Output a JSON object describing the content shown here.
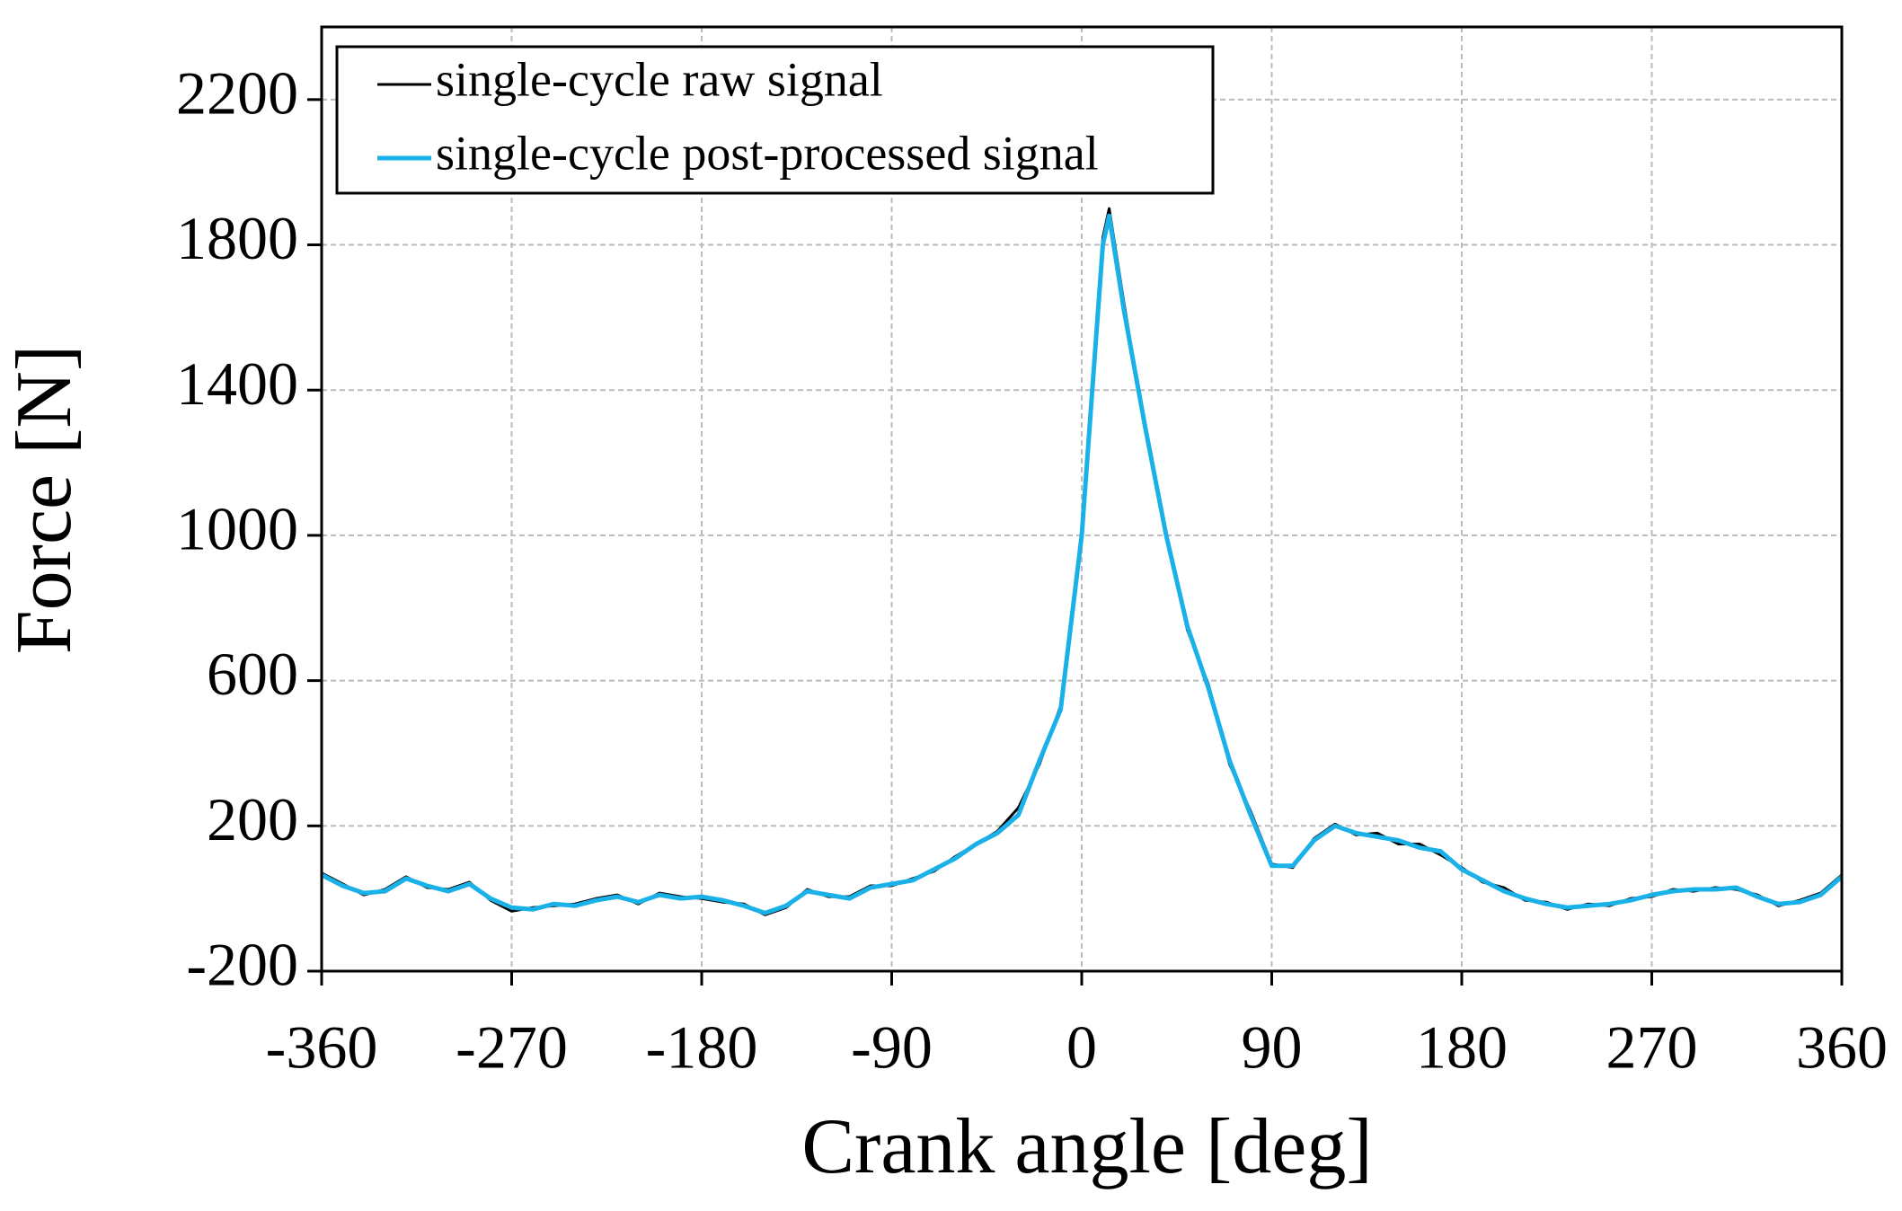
{
  "chart_data": {
    "type": "line",
    "xlabel": "Crank angle [deg]",
    "ylabel": "Force [N]",
    "x": [
      -360,
      -350,
      -340,
      -330,
      -320,
      -310,
      -300,
      -290,
      -280,
      -270,
      -260,
      -250,
      -240,
      -230,
      -220,
      -210,
      -200,
      -190,
      -180,
      -170,
      -160,
      -150,
      -140,
      -130,
      -120,
      -110,
      -100,
      -90,
      -80,
      -70,
      -60,
      -50,
      -40,
      -30,
      -20,
      -10,
      0,
      10,
      13,
      20,
      30,
      40,
      50,
      60,
      70,
      80,
      90,
      100,
      110,
      120,
      130,
      140,
      150,
      160,
      170,
      180,
      190,
      200,
      210,
      220,
      230,
      240,
      250,
      260,
      270,
      280,
      290,
      300,
      310,
      320,
      330,
      340,
      350,
      360
    ],
    "series": [
      {
        "name": "single-cycle raw signal",
        "color": "#000000",
        "values": [
          70,
          40,
          10,
          25,
          60,
          30,
          25,
          45,
          -5,
          -35,
          -25,
          -20,
          -15,
          0,
          10,
          -15,
          15,
          5,
          0,
          -10,
          -15,
          -45,
          -25,
          25,
          5,
          5,
          35,
          35,
          55,
          75,
          115,
          150,
          185,
          250,
          370,
          530,
          1010,
          1820,
          1900,
          1640,
          1290,
          1010,
          740,
          590,
          370,
          240,
          95,
          85,
          165,
          205,
          175,
          180,
          150,
          150,
          120,
          85,
          45,
          30,
          -5,
          -10,
          -30,
          -15,
          -20,
          0,
          5,
          25,
          20,
          30,
          25,
          10,
          -20,
          -5,
          15,
          65
        ]
      },
      {
        "name": "single-cycle post-processed signal",
        "color": "#1ab0e8",
        "values": [
          65,
          35,
          15,
          20,
          55,
          35,
          20,
          40,
          0,
          -25,
          -30,
          -15,
          -20,
          -5,
          5,
          -10,
          10,
          0,
          5,
          -5,
          -20,
          -40,
          -20,
          20,
          10,
          0,
          30,
          40,
          50,
          80,
          110,
          150,
          180,
          230,
          380,
          520,
          1000,
          1800,
          1880,
          1620,
          1300,
          1000,
          750,
          580,
          380,
          230,
          90,
          90,
          160,
          200,
          180,
          170,
          160,
          140,
          130,
          80,
          50,
          20,
          0,
          -15,
          -25,
          -20,
          -15,
          -5,
          10,
          20,
          25,
          25,
          30,
          5,
          -15,
          -10,
          10,
          60
        ]
      }
    ],
    "xlim": [
      -360,
      360
    ],
    "xticks": [
      -360,
      -270,
      -180,
      -90,
      0,
      90,
      180,
      270,
      360
    ],
    "ylim": [
      -200,
      2400
    ],
    "yticks": [
      -200,
      200,
      600,
      1000,
      1400,
      1800,
      2200
    ],
    "grid": true,
    "legend": "upper left"
  }
}
